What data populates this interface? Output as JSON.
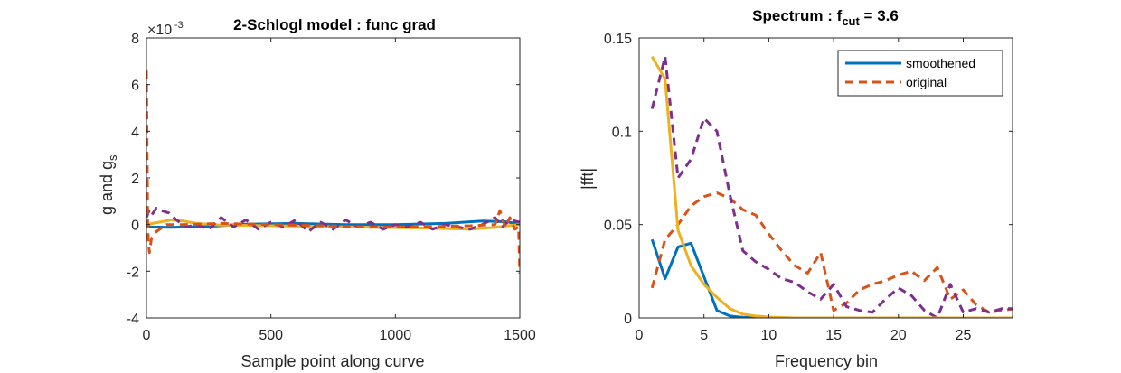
{
  "chart_data": [
    {
      "type": "line",
      "title": "2-Schlogl model : func grad",
      "xlabel": "Sample point along curve",
      "ylabel": "g and g",
      "ylabel_subscript": "s",
      "exponent_base": "×10",
      "exponent": "-3",
      "xlim": [
        0,
        1500
      ],
      "ylim": [
        -4,
        8
      ],
      "xticks": [
        "0",
        "500",
        "1000",
        "1500"
      ],
      "yticks": [
        "-4",
        "-2",
        "0",
        "2",
        "4",
        "6",
        "8"
      ],
      "series": [
        {
          "color": "#0072BD",
          "dash": "solid",
          "x": [
            0,
            100,
            250,
            400,
            600,
            800,
            1000,
            1200,
            1350,
            1450,
            1500
          ],
          "y": [
            -0.1,
            -0.12,
            -0.08,
            0.02,
            0.05,
            0.0,
            0.0,
            0.05,
            0.15,
            0.12,
            0.0
          ]
        },
        {
          "color": "#EDB120",
          "dash": "solid",
          "x": [
            0,
            50,
            100,
            150,
            200,
            300,
            500,
            700,
            900,
            1100,
            1300,
            1400,
            1450,
            1500
          ],
          "y": [
            0.0,
            0.1,
            0.2,
            0.15,
            0.05,
            -0.02,
            -0.05,
            -0.08,
            -0.12,
            -0.15,
            -0.2,
            -0.12,
            -0.05,
            0.0
          ]
        },
        {
          "color": "#7E2F8E",
          "dash": "dashed",
          "x": [
            0,
            10,
            20,
            40,
            60,
            90,
            120,
            160,
            200,
            250,
            300,
            350,
            400,
            450,
            500,
            550,
            600,
            650,
            700,
            750,
            800,
            850,
            900,
            950,
            1000,
            1050,
            1100,
            1150,
            1200,
            1250,
            1300,
            1350,
            1400,
            1430,
            1460,
            1500
          ],
          "y": [
            0.3,
            0.6,
            0.4,
            0.7,
            0.6,
            0.5,
            0.2,
            -0.1,
            0.0,
            -0.2,
            0.3,
            -0.1,
            0.2,
            -0.2,
            0.1,
            -0.1,
            0.2,
            -0.3,
            0.1,
            -0.2,
            0.2,
            -0.1,
            0.1,
            -0.2,
            0.0,
            -0.1,
            0.1,
            -0.2,
            0.0,
            -0.1,
            -0.2,
            0.0,
            0.3,
            -0.1,
            0.2,
            0.1
          ]
        },
        {
          "color": "#D95319",
          "dash": "dashed",
          "x": [
            0,
            5,
            8,
            12,
            20,
            40,
            80,
            150,
            300,
            500,
            700,
            900,
            1100,
            1300,
            1400,
            1420,
            1440,
            1460,
            1480,
            1495,
            1500
          ],
          "y": [
            6.6,
            0.0,
            -0.8,
            -1.2,
            -0.6,
            -0.3,
            0.0,
            0.0,
            0.05,
            0.0,
            -0.05,
            -0.1,
            -0.1,
            -0.05,
            0.0,
            0.6,
            -0.1,
            0.3,
            -0.2,
            -0.1,
            -2.1
          ]
        }
      ]
    },
    {
      "type": "line",
      "title": "Spectrum : f",
      "title_subscript": "cut",
      "title_suffix": " = 3.6",
      "xlabel": "Frequency bin",
      "ylabel": "|fft|",
      "xlim": [
        0,
        28.8
      ],
      "ylim": [
        0,
        0.15
      ],
      "xticks": [
        "0",
        "5",
        "10",
        "15",
        "20",
        "25"
      ],
      "yticks": [
        "0",
        "0.05",
        "0.1",
        "0.15"
      ],
      "legend": {
        "position": "top-right",
        "entries": [
          "smoothened",
          "original"
        ]
      },
      "series": [
        {
          "name": "smoothened",
          "color": "#0072BD",
          "dash": "solid",
          "x": [
            1,
            2,
            3,
            4,
            5,
            6,
            7,
            8,
            9,
            10,
            12,
            15,
            20,
            25,
            29
          ],
          "y": [
            0.042,
            0.021,
            0.038,
            0.04,
            0.022,
            0.004,
            0.001,
            0.0003,
            0.0001,
            0.0,
            0.0,
            0.0,
            0.0,
            0.0,
            0.0
          ]
        },
        {
          "name": "original",
          "color": "#D95319",
          "dash": "dashed",
          "x": [
            1,
            2,
            3,
            4,
            5,
            6,
            7,
            8,
            9,
            10,
            11,
            12,
            13,
            14,
            15,
            16,
            17,
            18,
            19,
            20,
            21,
            22,
            23,
            24,
            25,
            26,
            27,
            28,
            29
          ],
          "y": [
            0.016,
            0.042,
            0.05,
            0.06,
            0.065,
            0.067,
            0.064,
            0.058,
            0.055,
            0.045,
            0.036,
            0.028,
            0.024,
            0.035,
            0.004,
            0.008,
            0.015,
            0.018,
            0.02,
            0.023,
            0.025,
            0.02,
            0.027,
            0.01,
            0.015,
            0.007,
            0.003,
            0.004,
            0.005
          ]
        },
        {
          "color": "#7E2F8E",
          "dash": "dashed",
          "x": [
            1,
            2,
            3,
            4,
            5,
            6,
            7,
            8,
            9,
            10,
            11,
            12,
            13,
            14,
            15,
            16,
            17,
            18,
            19,
            20,
            21,
            22,
            23,
            24,
            25,
            26,
            27,
            28,
            29
          ],
          "y": [
            0.112,
            0.14,
            0.075,
            0.085,
            0.107,
            0.1,
            0.066,
            0.036,
            0.03,
            0.026,
            0.021,
            0.019,
            0.014,
            0.01,
            0.018,
            0.006,
            0.004,
            0.003,
            0.01,
            0.016,
            0.012,
            0.004,
            0.0,
            0.018,
            0.003,
            0.005,
            0.003,
            0.005,
            0.005
          ]
        },
        {
          "color": "#EDB120",
          "dash": "solid",
          "x": [
            1,
            2,
            3,
            4,
            5,
            6,
            7,
            8,
            9,
            10,
            12,
            15,
            20,
            25,
            29
          ],
          "y": [
            0.14,
            0.128,
            0.047,
            0.028,
            0.018,
            0.011,
            0.005,
            0.002,
            0.001,
            0.0005,
            0.0,
            0.0,
            0.0,
            0.0,
            0.0
          ]
        }
      ]
    }
  ]
}
